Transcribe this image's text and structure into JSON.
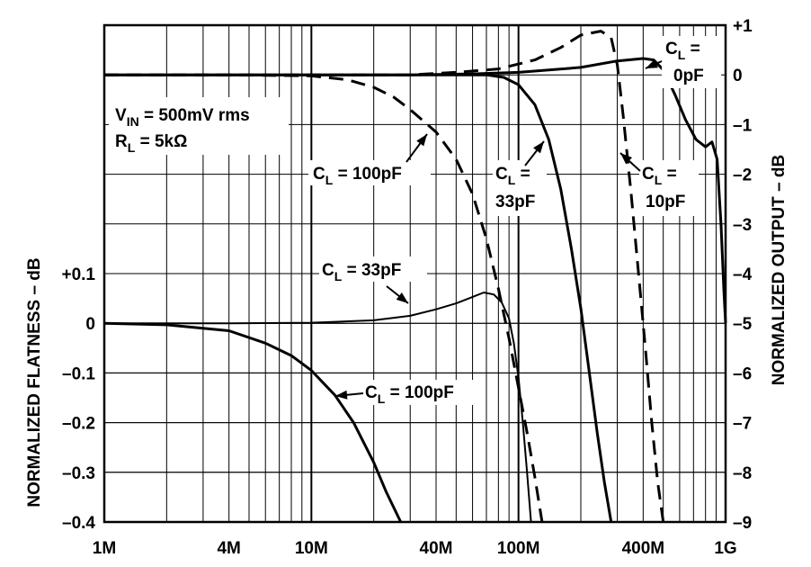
{
  "chart_data": {
    "type": "line",
    "x_scale": "log",
    "x_range_hz": [
      1000000,
      1000000000
    ],
    "x_ticks": [
      {
        "value": 1000000,
        "label": "1M"
      },
      {
        "value": 4000000,
        "label": "4M"
      },
      {
        "value": 10000000,
        "label": "10M"
      },
      {
        "value": 40000000,
        "label": "40M"
      },
      {
        "value": 100000000,
        "label": "100M"
      },
      {
        "value": 400000000,
        "label": "400M"
      },
      {
        "value": 1000000000,
        "label": "1G"
      }
    ],
    "left_axis": {
      "label": "NORMALIZED FLATNESS – dB",
      "range": [
        -0.4,
        0.15
      ],
      "ticks": [
        {
          "value": 0.1,
          "label": "+0.1"
        },
        {
          "value": 0,
          "label": "0"
        },
        {
          "value": -0.1,
          "label": "–0.1"
        },
        {
          "value": -0.2,
          "label": "–0.2"
        },
        {
          "value": -0.3,
          "label": "–0.3"
        },
        {
          "value": -0.4,
          "label": "–0.4"
        }
      ]
    },
    "right_axis": {
      "label": "NORMALIZED OUTPUT – dB",
      "range": [
        -9,
        1
      ],
      "ticks": [
        {
          "value": 1,
          "label": "+1"
        },
        {
          "value": 0,
          "label": "0"
        },
        {
          "value": -1,
          "label": "–1"
        },
        {
          "value": -2,
          "label": "–2"
        },
        {
          "value": -3,
          "label": "–3"
        },
        {
          "value": -4,
          "label": "–4"
        },
        {
          "value": -5,
          "label": "–5"
        },
        {
          "value": -6,
          "label": "–6"
        },
        {
          "value": -7,
          "label": "–7"
        },
        {
          "value": -8,
          "label": "–8"
        },
        {
          "value": -9,
          "label": "–9"
        }
      ]
    },
    "grid": true,
    "conditions": {
      "vin": {
        "sym": "V",
        "sub": "IN",
        "rest": " = 500mV rms"
      },
      "rl": {
        "sym": "R",
        "sub": "L",
        "rest": " = 5kΩ"
      }
    },
    "series": [
      {
        "name": "CL = 0pF",
        "axis": "right",
        "style": "solid",
        "width": 3,
        "points": [
          [
            1000000.0,
            0
          ],
          [
            4000000.0,
            0
          ],
          [
            10000000.0,
            0
          ],
          [
            30000000.0,
            0
          ],
          [
            60000000.0,
            0.02
          ],
          [
            100000000.0,
            0.05
          ],
          [
            200000000.0,
            0.15
          ],
          [
            300000000.0,
            0.28
          ],
          [
            400000000.0,
            0.33
          ],
          [
            450000000.0,
            0.3
          ],
          [
            500000000.0,
            0.1
          ],
          [
            570000000.0,
            -0.4
          ],
          [
            640000000.0,
            -0.9
          ],
          [
            720000000.0,
            -1.3
          ],
          [
            800000000.0,
            -1.45
          ],
          [
            860000000.0,
            -1.35
          ],
          [
            910000000.0,
            -1.7
          ],
          [
            950000000.0,
            -3
          ],
          [
            980000000.0,
            -4.3
          ],
          [
            1000000000.0,
            -5
          ]
        ]
      },
      {
        "name": "CL = 10pF",
        "axis": "right",
        "style": "dashed",
        "width": 3,
        "points": [
          [
            1000000.0,
            0
          ],
          [
            4000000.0,
            0
          ],
          [
            10000000.0,
            0
          ],
          [
            30000000.0,
            0
          ],
          [
            50000000.0,
            0.05
          ],
          [
            80000000.0,
            0.12
          ],
          [
            120000000.0,
            0.3
          ],
          [
            160000000.0,
            0.55
          ],
          [
            200000000.0,
            0.8
          ],
          [
            250000000.0,
            0.88
          ],
          [
            280000000.0,
            0.75
          ],
          [
            300000000.0,
            0.2
          ],
          [
            320000000.0,
            -0.8
          ],
          [
            350000000.0,
            -2.4
          ],
          [
            380000000.0,
            -4
          ],
          [
            410000000.0,
            -5.5
          ],
          [
            440000000.0,
            -7
          ],
          [
            470000000.0,
            -8.2
          ],
          [
            500000000.0,
            -9
          ]
        ]
      },
      {
        "name": "CL = 33pF",
        "axis": "right",
        "style": "solid",
        "width": 3,
        "points": [
          [
            1000000.0,
            0
          ],
          [
            4000000.0,
            0
          ],
          [
            10000000.0,
            0
          ],
          [
            50000000.0,
            0
          ],
          [
            70000000.0,
            0
          ],
          [
            85000000.0,
            -0.05
          ],
          [
            100000000.0,
            -0.2
          ],
          [
            120000000.0,
            -0.6
          ],
          [
            140000000.0,
            -1.3
          ],
          [
            160000000.0,
            -2.3
          ],
          [
            180000000.0,
            -3.5
          ],
          [
            200000000.0,
            -4.7
          ],
          [
            220000000.0,
            -6
          ],
          [
            240000000.0,
            -7.2
          ],
          [
            260000000.0,
            -8.2
          ],
          [
            280000000.0,
            -9
          ]
        ]
      },
      {
        "name": "CL = 100pF",
        "axis": "right",
        "style": "dashed",
        "width": 3,
        "points": [
          [
            1000000.0,
            0
          ],
          [
            4000000.0,
            0
          ],
          [
            10000000.0,
            -0.02
          ],
          [
            15000000.0,
            -0.1
          ],
          [
            20000000.0,
            -0.25
          ],
          [
            25000000.0,
            -0.45
          ],
          [
            30000000.0,
            -0.7
          ],
          [
            40000000.0,
            -1.15
          ],
          [
            50000000.0,
            -1.7
          ],
          [
            60000000.0,
            -2.4
          ],
          [
            70000000.0,
            -3.3
          ],
          [
            80000000.0,
            -4.3
          ],
          [
            90000000.0,
            -5.3
          ],
          [
            100000000.0,
            -6.3
          ],
          [
            110000000.0,
            -7.2
          ],
          [
            120000000.0,
            -8.1
          ],
          [
            130000000.0,
            -9
          ]
        ]
      },
      {
        "name": "CL = 33pF flatness",
        "axis": "left",
        "style": "solid",
        "width": 2,
        "points": [
          [
            1000000.0,
            0
          ],
          [
            4000000.0,
            0
          ],
          [
            10000000.0,
            0.001
          ],
          [
            20000000.0,
            0.006
          ],
          [
            30000000.0,
            0.015
          ],
          [
            40000000.0,
            0.028
          ],
          [
            50000000.0,
            0.04
          ],
          [
            60000000.0,
            0.053
          ],
          [
            68000000.0,
            0.062
          ],
          [
            76000000.0,
            0.058
          ],
          [
            83000000.0,
            0.042
          ],
          [
            90000000.0,
            0.01
          ],
          [
            95000000.0,
            -0.04
          ],
          [
            100000000.0,
            -0.11
          ],
          [
            105000000.0,
            -0.2
          ],
          [
            110000000.0,
            -0.3
          ],
          [
            115000000.0,
            -0.4
          ]
        ]
      },
      {
        "name": "CL = 100pF flatness",
        "axis": "left",
        "style": "solid",
        "width": 3,
        "points": [
          [
            1000000.0,
            0
          ],
          [
            2000000.0,
            -0.003
          ],
          [
            4000000.0,
            -0.015
          ],
          [
            6000000.0,
            -0.04
          ],
          [
            8000000.0,
            -0.065
          ],
          [
            10000000.0,
            -0.095
          ],
          [
            13000000.0,
            -0.145
          ],
          [
            16000000.0,
            -0.2
          ],
          [
            20000000.0,
            -0.28
          ],
          [
            23000000.0,
            -0.34
          ],
          [
            27000000.0,
            -0.4
          ]
        ]
      }
    ],
    "annotations": [
      {
        "text": "= ",
        "sym": "C",
        "sub": "L",
        "lines": [
          "C_L =",
          "0pF"
        ]
      },
      {
        "sym": "C",
        "sub": "L",
        "rest": " = 100pF"
      },
      {
        "sym": "C",
        "sub": "L",
        "rest": " =",
        "line2": "33pF"
      },
      {
        "sym": "C",
        "sub": "L",
        "rest": " =",
        "line2": "10pF"
      },
      {
        "sym": "C",
        "sub": "L",
        "rest": " = 33pF"
      },
      {
        "sym": "C",
        "sub": "L",
        "rest": " = 100pF"
      }
    ]
  }
}
